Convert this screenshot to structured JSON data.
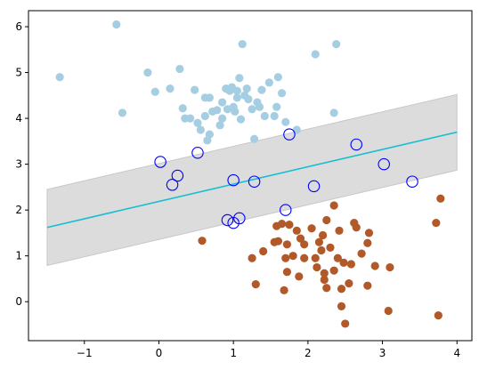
{
  "chart_data": {
    "type": "scatter",
    "title": "",
    "xlabel": "",
    "ylabel": "",
    "xlim": [
      -1.75,
      4.2
    ],
    "ylim": [
      -0.85,
      6.35
    ],
    "xticks": [
      {
        "value": -1,
        "label": "−1"
      },
      {
        "value": 0,
        "label": "0"
      },
      {
        "value": 1,
        "label": "1"
      },
      {
        "value": 2,
        "label": "2"
      },
      {
        "value": 3,
        "label": "3"
      },
      {
        "value": 4,
        "label": "4"
      }
    ],
    "yticks": [
      {
        "value": 0,
        "label": "0"
      },
      {
        "value": 1,
        "label": "1"
      },
      {
        "value": 2,
        "label": "2"
      },
      {
        "value": 3,
        "label": "3"
      },
      {
        "value": 4,
        "label": "4"
      },
      {
        "value": 5,
        "label": "5"
      },
      {
        "value": 6,
        "label": "6"
      }
    ],
    "grid": false,
    "legend": "none",
    "decision_boundary": {
      "color": "#17becf",
      "points": [
        [
          -1.5,
          1.62
        ],
        [
          4.0,
          3.7
        ]
      ]
    },
    "margin_band": {
      "color": "#dcdcdc",
      "edge_color": "#c8c8c8",
      "upper": [
        [
          -1.5,
          2.45
        ],
        [
          4.0,
          4.52
        ]
      ],
      "lower": [
        [
          -1.5,
          0.79
        ],
        [
          4.0,
          2.87
        ]
      ]
    },
    "series": [
      {
        "color": "#a6cee3",
        "points": [
          [
            -0.57,
            6.05
          ],
          [
            -1.33,
            4.9
          ],
          [
            -0.49,
            4.12
          ],
          [
            -0.15,
            5.0
          ],
          [
            -0.05,
            4.58
          ],
          [
            0.15,
            4.65
          ],
          [
            0.28,
            5.08
          ],
          [
            0.32,
            4.22
          ],
          [
            0.35,
            4.0
          ],
          [
            0.42,
            4.0
          ],
          [
            0.48,
            4.62
          ],
          [
            0.52,
            3.9
          ],
          [
            0.56,
            3.75
          ],
          [
            0.62,
            4.45
          ],
          [
            0.62,
            4.05
          ],
          [
            0.65,
            3.52
          ],
          [
            0.68,
            3.65
          ],
          [
            0.68,
            4.45
          ],
          [
            0.72,
            4.15
          ],
          [
            0.78,
            4.18
          ],
          [
            0.82,
            3.85
          ],
          [
            0.85,
            4.0
          ],
          [
            0.85,
            4.35
          ],
          [
            0.9,
            4.65
          ],
          [
            0.92,
            4.2
          ],
          [
            0.95,
            4.6
          ],
          [
            0.98,
            4.68
          ],
          [
            1.0,
            4.25
          ],
          [
            1.02,
            4.15
          ],
          [
            1.05,
            4.45
          ],
          [
            1.05,
            4.6
          ],
          [
            1.08,
            4.88
          ],
          [
            1.1,
            3.98
          ],
          [
            1.12,
            5.62
          ],
          [
            1.15,
            4.5
          ],
          [
            1.18,
            4.65
          ],
          [
            1.2,
            4.42
          ],
          [
            1.25,
            4.2
          ],
          [
            1.28,
            3.55
          ],
          [
            1.32,
            4.35
          ],
          [
            1.35,
            4.25
          ],
          [
            1.38,
            4.62
          ],
          [
            1.42,
            4.05
          ],
          [
            1.48,
            4.78
          ],
          [
            1.55,
            4.05
          ],
          [
            1.58,
            4.25
          ],
          [
            1.6,
            4.9
          ],
          [
            1.65,
            4.55
          ],
          [
            1.7,
            3.92
          ],
          [
            1.85,
            3.75
          ],
          [
            2.1,
            5.4
          ],
          [
            2.35,
            4.12
          ],
          [
            2.38,
            5.62
          ]
        ]
      },
      {
        "color": "#b15928",
        "points": [
          [
            0.58,
            1.33
          ],
          [
            1.25,
            0.95
          ],
          [
            1.3,
            0.38
          ],
          [
            1.4,
            1.1
          ],
          [
            1.55,
            1.3
          ],
          [
            1.58,
            1.65
          ],
          [
            1.6,
            1.32
          ],
          [
            1.65,
            1.7
          ],
          [
            1.68,
            0.25
          ],
          [
            1.7,
            0.95
          ],
          [
            1.72,
            1.25
          ],
          [
            1.72,
            0.65
          ],
          [
            1.75,
            1.68
          ],
          [
            1.8,
            1.0
          ],
          [
            1.85,
            1.55
          ],
          [
            1.88,
            0.55
          ],
          [
            1.9,
            1.38
          ],
          [
            1.95,
            1.25
          ],
          [
            1.95,
            0.95
          ],
          [
            2.05,
            1.6
          ],
          [
            2.1,
            0.95
          ],
          [
            2.12,
            0.75
          ],
          [
            2.15,
            1.3
          ],
          [
            2.18,
            1.12
          ],
          [
            2.2,
            1.45
          ],
          [
            2.22,
            0.62
          ],
          [
            2.22,
            0.48
          ],
          [
            2.25,
            0.3
          ],
          [
            2.25,
            1.78
          ],
          [
            2.3,
            1.18
          ],
          [
            2.35,
            0.68
          ],
          [
            2.35,
            2.1
          ],
          [
            2.4,
            0.95
          ],
          [
            2.42,
            1.55
          ],
          [
            2.45,
            0.28
          ],
          [
            2.45,
            -0.1
          ],
          [
            2.48,
            0.85
          ],
          [
            2.5,
            -0.48
          ],
          [
            2.55,
            0.4
          ],
          [
            2.58,
            0.82
          ],
          [
            2.62,
            1.72
          ],
          [
            2.65,
            1.62
          ],
          [
            2.72,
            1.05
          ],
          [
            2.8,
            1.28
          ],
          [
            2.8,
            0.35
          ],
          [
            2.82,
            1.5
          ],
          [
            2.9,
            0.78
          ],
          [
            3.08,
            -0.2
          ],
          [
            3.1,
            0.75
          ],
          [
            3.72,
            1.72
          ],
          [
            3.75,
            -0.3
          ],
          [
            3.78,
            2.25
          ]
        ]
      }
    ],
    "support_vectors": {
      "edge_color": "#0000ff",
      "points": [
        [
          0.02,
          3.05
        ],
        [
          0.18,
          2.55
        ],
        [
          0.25,
          2.75
        ],
        [
          0.52,
          3.25
        ],
        [
          1.0,
          2.65
        ],
        [
          1.28,
          2.62
        ],
        [
          1.75,
          3.65
        ],
        [
          2.08,
          2.52
        ],
        [
          2.65,
          3.43
        ],
        [
          3.02,
          3.0
        ],
        [
          3.4,
          2.62
        ],
        [
          0.92,
          1.78
        ],
        [
          1.0,
          1.72
        ],
        [
          1.08,
          1.82
        ],
        [
          1.7,
          2.0
        ]
      ]
    }
  }
}
